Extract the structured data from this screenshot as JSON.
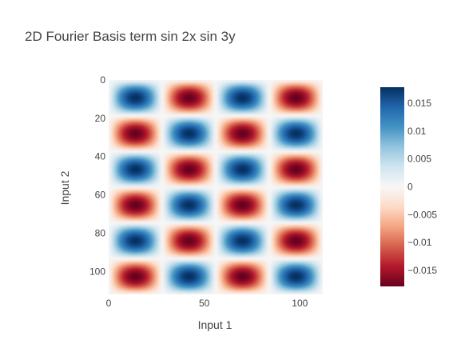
{
  "chart_data": {
    "type": "heatmap",
    "title": "2D Fourier Basis term sin 2x sin 3y",
    "xlabel": "Input 1",
    "ylabel": "Input 2",
    "x_range": [
      0,
      112
    ],
    "y_range": [
      0,
      112
    ],
    "y_reversed": true,
    "grid_size": 112,
    "function": "sin 2x sin 3y",
    "amplitude": 0.0179,
    "x_cycles": 2,
    "y_cycles": 3,
    "x_ticks": [
      0,
      50,
      100
    ],
    "x_tick_labels": [
      "0",
      "50",
      "100"
    ],
    "y_ticks": [
      0,
      20,
      40,
      60,
      80,
      100
    ],
    "y_tick_labels": [
      "0",
      "20",
      "40",
      "60",
      "80",
      "100"
    ],
    "colorscale": "RdBu",
    "colorscale_stops": [
      [
        0.0,
        "#67001f"
      ],
      [
        0.1,
        "#b2182b"
      ],
      [
        0.2,
        "#d6604d"
      ],
      [
        0.3,
        "#f4a582"
      ],
      [
        0.4,
        "#fddbc7"
      ],
      [
        0.5,
        "#f7f7f7"
      ],
      [
        0.6,
        "#d1e5f0"
      ],
      [
        0.7,
        "#92c5de"
      ],
      [
        0.8,
        "#4393c3"
      ],
      [
        0.9,
        "#2166ac"
      ],
      [
        1.0,
        "#053061"
      ]
    ],
    "colorbar": {
      "min": -0.0179,
      "max": 0.0179,
      "ticks": [
        0.015,
        0.01,
        0.005,
        0,
        -0.005,
        -0.01,
        -0.015
      ],
      "tick_labels": [
        "0.015",
        "0.01",
        "0.005",
        "0",
        "−0.005",
        "−0.01",
        "−0.015"
      ]
    }
  }
}
